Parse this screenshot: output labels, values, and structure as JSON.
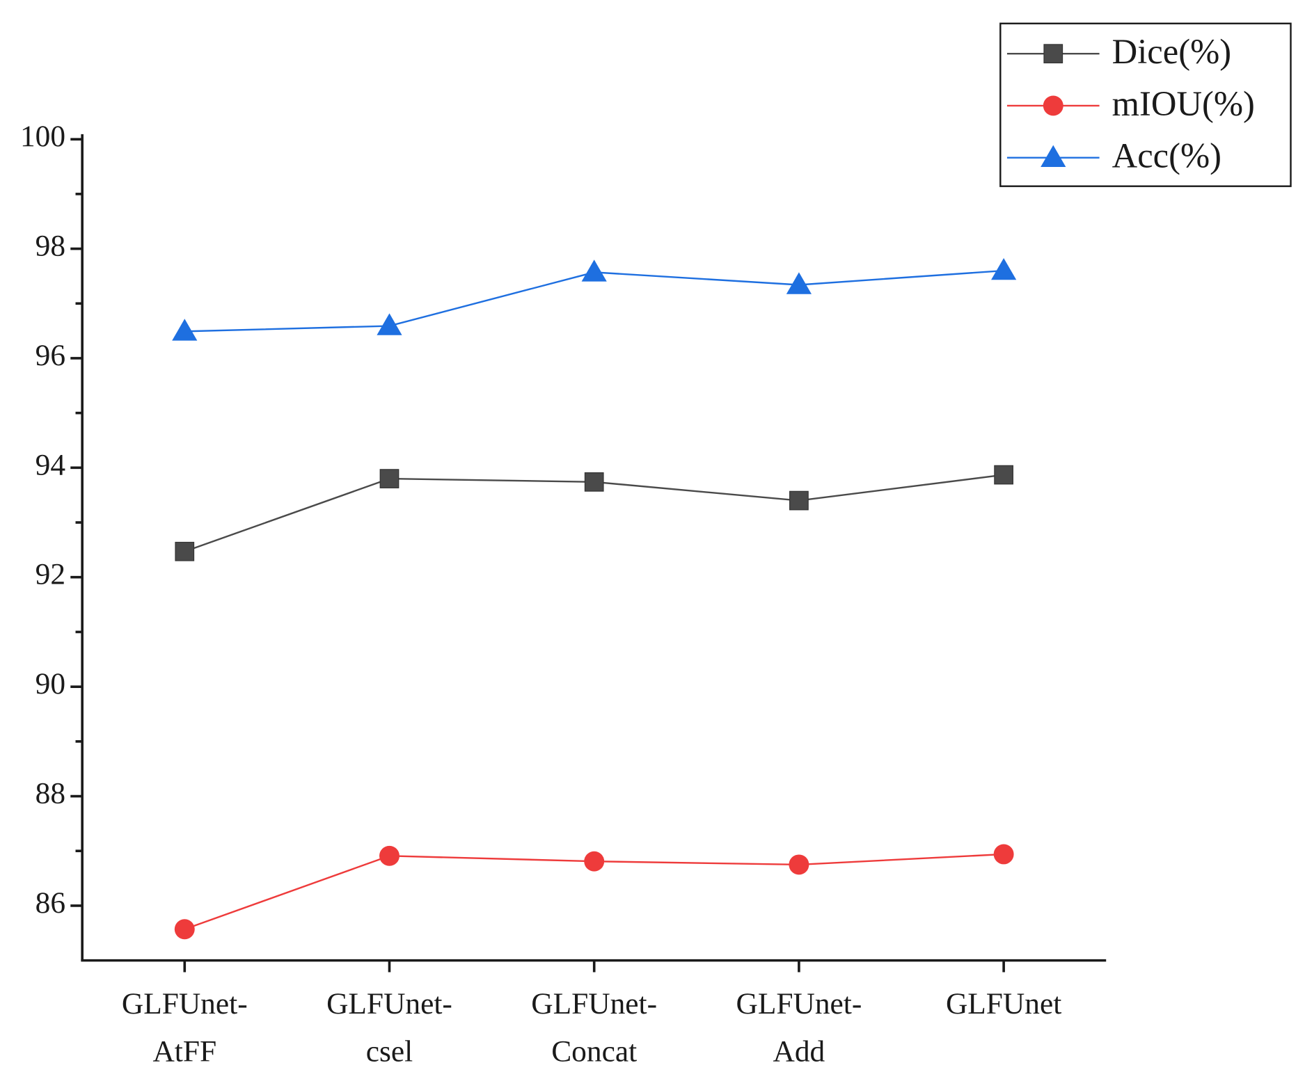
{
  "chart_data": {
    "type": "line",
    "categories": [
      "GLFUnet-AtFF",
      "GLFUnet-csel",
      "GLFUnet-Concat",
      "GLFUnet-Add",
      "GLFUnet"
    ],
    "series": [
      {
        "name": "Dice(%)",
        "color": "#4a4a4a",
        "marker": "square",
        "values": [
          92.47,
          93.8,
          93.74,
          93.4,
          93.87
        ]
      },
      {
        "name": "mIOU(%)",
        "color": "#ee3b3b",
        "marker": "circle",
        "values": [
          85.57,
          86.91,
          86.81,
          86.75,
          86.94
        ]
      },
      {
        "name": "Acc(%)",
        "color": "#1e6fe0",
        "marker": "triangle",
        "values": [
          96.49,
          96.59,
          97.57,
          97.34,
          97.6
        ]
      }
    ],
    "ylim": [
      85,
      100
    ],
    "yticks": [
      86,
      88,
      90,
      92,
      94,
      96,
      98,
      100
    ],
    "grid": false,
    "legend": "top-right"
  }
}
